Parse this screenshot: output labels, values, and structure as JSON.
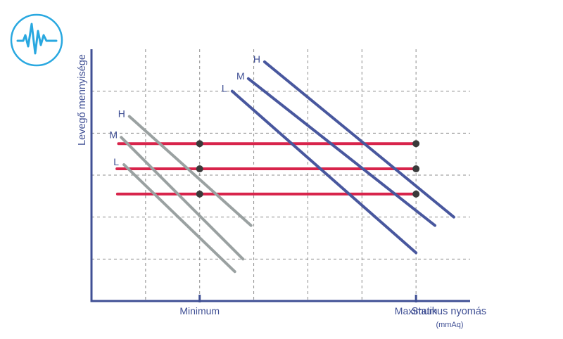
{
  "logo": {
    "icon": "heartbeat-pulse-icon",
    "color": "#29a8e0"
  },
  "chart_data": {
    "type": "line",
    "ylabel": "Levegő mennyisége",
    "xlabel": "Statikus nyomás",
    "xunit": "(mmAq)",
    "x_markers": [
      {
        "label": "Minimum",
        "x": 2
      },
      {
        "label": "Maximum",
        "x": 6
      }
    ],
    "xlim": [
      0,
      7
    ],
    "ylim": [
      0,
      6
    ],
    "grid": true,
    "colors": {
      "axis": "#3f4f94",
      "fan_low": "#9aa1a1",
      "fan_high": "#48579e",
      "range": "#d8244b",
      "point": "#3a3a3a",
      "label": "#3f4f94"
    },
    "fan_curves_min": [
      {
        "name": "H",
        "points": [
          [
            0.7,
            4.4
          ],
          [
            2.95,
            1.8
          ]
        ]
      },
      {
        "name": "M",
        "points": [
          [
            0.55,
            3.9
          ],
          [
            2.8,
            1.0
          ]
        ]
      },
      {
        "name": "L",
        "points": [
          [
            0.6,
            3.25
          ],
          [
            2.65,
            0.7
          ]
        ]
      }
    ],
    "fan_curves_max": [
      {
        "name": "H",
        "points": [
          [
            3.2,
            5.7
          ],
          [
            6.7,
            2.0
          ]
        ]
      },
      {
        "name": "M",
        "points": [
          [
            2.9,
            5.3
          ],
          [
            6.35,
            1.8
          ]
        ]
      },
      {
        "name": "L",
        "points": [
          [
            2.6,
            5.0
          ],
          [
            6.0,
            1.15
          ]
        ]
      }
    ],
    "operating_ranges": [
      {
        "y": 3.75,
        "x": [
          0.5,
          5.95
        ]
      },
      {
        "y": 3.15,
        "x": [
          0.47,
          5.98
        ]
      },
      {
        "y": 2.55,
        "x": [
          0.48,
          5.95
        ]
      }
    ],
    "points": [
      [
        2,
        3.75
      ],
      [
        2,
        3.15
      ],
      [
        2,
        2.55
      ],
      [
        6,
        3.75
      ],
      [
        6,
        3.15
      ],
      [
        6,
        2.55
      ]
    ]
  }
}
